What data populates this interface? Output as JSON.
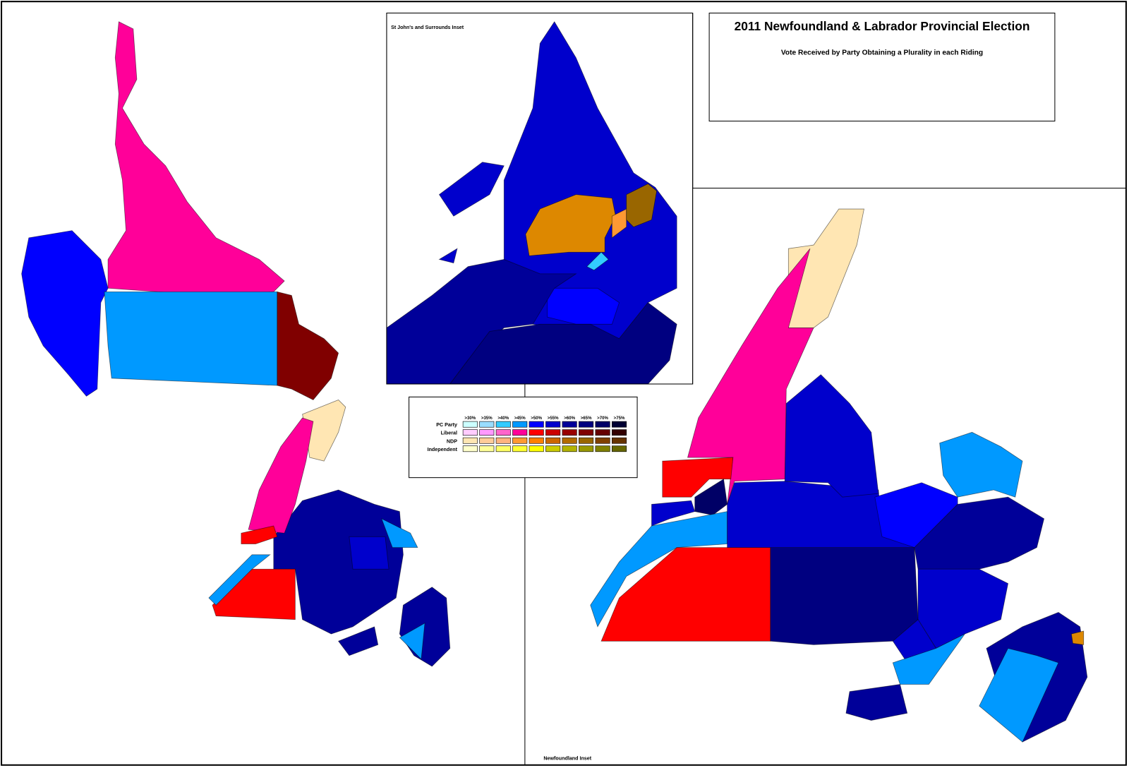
{
  "title": "2011 Newfoundland & Labrador Provincial Election",
  "subtitle": "Vote Received by Party Obtaining a Plurality in each Riding",
  "insets": {
    "st_johns": "St John's and Surrounds Inset",
    "newfoundland": "Newfoundland Inset"
  },
  "legend": {
    "thresholds": [
      ">30%",
      ">35%",
      ">40%",
      ">45%",
      ">50%",
      ">55%",
      ">60%",
      ">65%",
      ">70%",
      ">75%"
    ],
    "parties": [
      {
        "name": "PC Party",
        "colors": [
          "#ccffff",
          "#99ddff",
          "#33ccff",
          "#0099ff",
          "#0000ff",
          "#0000cc",
          "#000099",
          "#000080",
          "#000066",
          "#000033"
        ]
      },
      {
        "name": "Liberal",
        "colors": [
          "#ffccff",
          "#ff99ff",
          "#ff66cc",
          "#ff0099",
          "#ff0000",
          "#cc0000",
          "#990000",
          "#800000",
          "#660000",
          "#330000"
        ]
      },
      {
        "name": "NDP",
        "colors": [
          "#ffe6b3",
          "#ffcc99",
          "#ffb380",
          "#ff9933",
          "#ff8000",
          "#cc6600",
          "#b36b00",
          "#996600",
          "#804000",
          "#663300"
        ]
      },
      {
        "name": "Independent",
        "colors": [
          "#ffffcc",
          "#ffff99",
          "#ffff66",
          "#ffff33",
          "#ffff00",
          "#cccc00",
          "#b3b300",
          "#999900",
          "#808000",
          "#666600"
        ]
      }
    ]
  }
}
